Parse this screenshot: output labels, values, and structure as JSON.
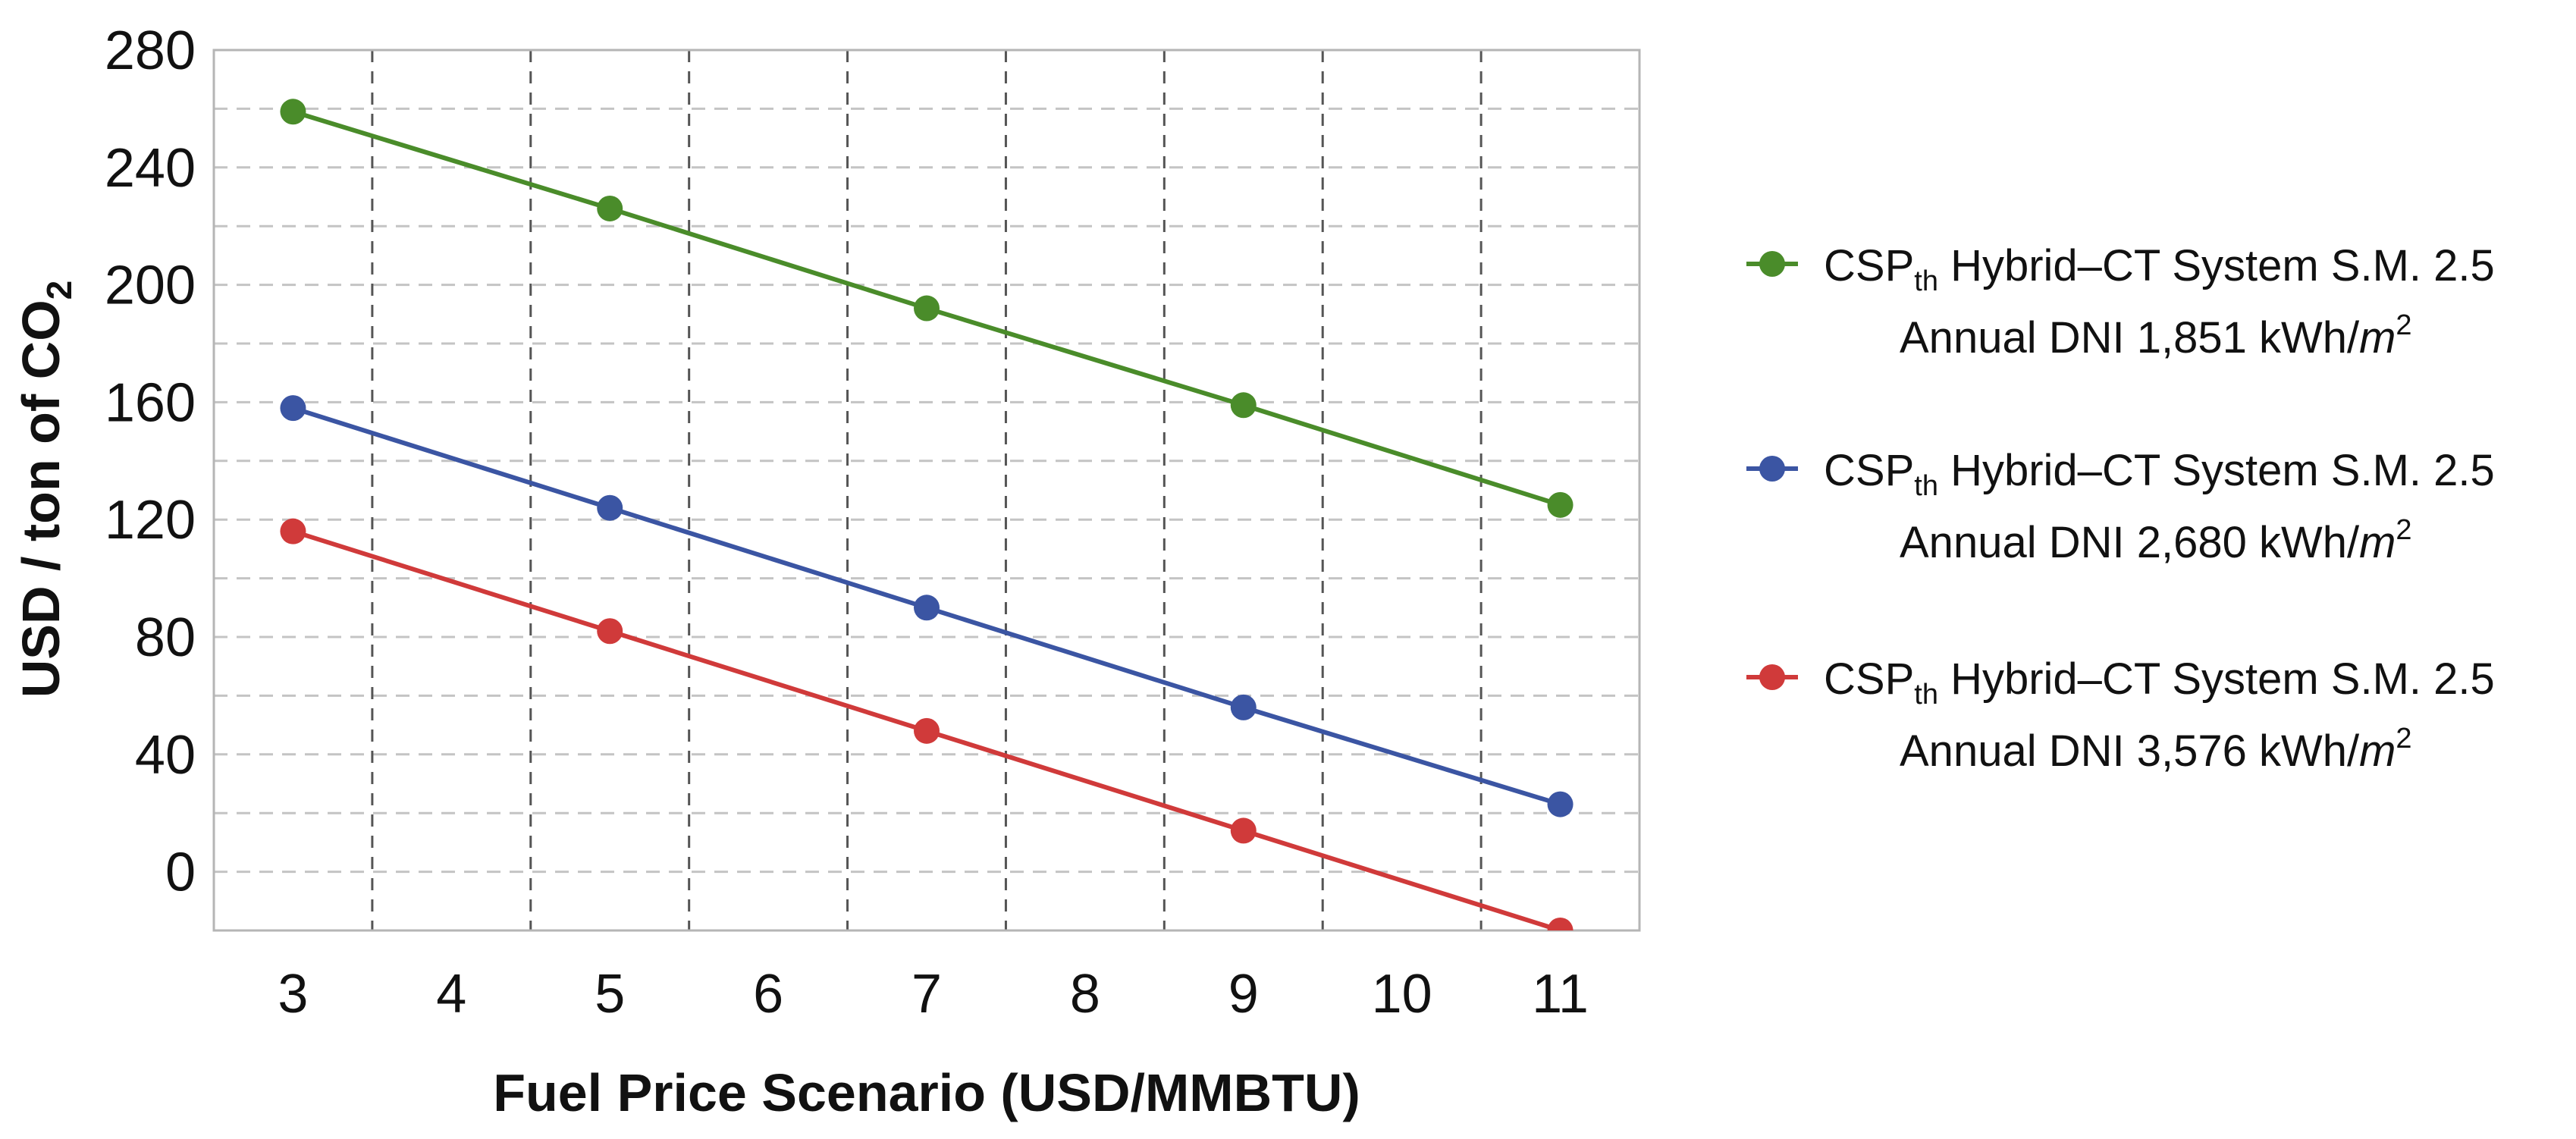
{
  "chart_data": {
    "type": "line",
    "title": "",
    "xlabel": "Fuel Price Scenario (USD/MMBTU)",
    "ylabel": {
      "main": "USD / ton of CO",
      "subscript": "2"
    },
    "xlim": [
      2.5,
      11.5
    ],
    "ylim": [
      -20,
      280
    ],
    "x_ticks": [
      3,
      4,
      5,
      6,
      7,
      8,
      9,
      10,
      11
    ],
    "y_ticks": [
      0,
      40,
      80,
      120,
      160,
      200,
      240,
      280
    ],
    "grid": true,
    "legend_position": "right",
    "x": [
      3,
      5,
      7,
      9,
      11
    ],
    "series": [
      {
        "name": "CSPth Hybrid–CT System S.M. 2.5 Annual DNI 1,851 kWh/m2",
        "legend_line1": {
          "prefix": "CSP",
          "subscript": "th",
          "suffix": " Hybrid–CT System S.M. 2.5"
        },
        "legend_line2": {
          "text": "Annual DNI 1,851 kWh/",
          "unit": "m",
          "superscript": "2"
        },
        "color": "#4a8c2a",
        "values": [
          259,
          226,
          192,
          159,
          125
        ]
      },
      {
        "name": "CSPth Hybrid–CT System S.M. 2.5 Annual DNI 2,680 kWh/m2",
        "legend_line1": {
          "prefix": "CSP",
          "subscript": "th",
          "suffix": " Hybrid–CT System S.M. 2.5"
        },
        "legend_line2": {
          "text": "Annual DNI 2,680 kWh/",
          "unit": "m",
          "superscript": "2"
        },
        "color": "#3b55a3",
        "values": [
          158,
          124,
          90,
          56,
          23
        ]
      },
      {
        "name": "CSPth Hybrid–CT System S.M. 2.5 Annual DNI 3,576 kWh/m2",
        "legend_line1": {
          "prefix": "CSP",
          "subscript": "th",
          "suffix": " Hybrid–CT System S.M. 2.5"
        },
        "legend_line2": {
          "text": "Annual DNI 3,576 kWh/",
          "unit": "m",
          "superscript": "2"
        },
        "color": "#d03a3a",
        "values": [
          116,
          82,
          48,
          14,
          -20
        ]
      }
    ]
  }
}
